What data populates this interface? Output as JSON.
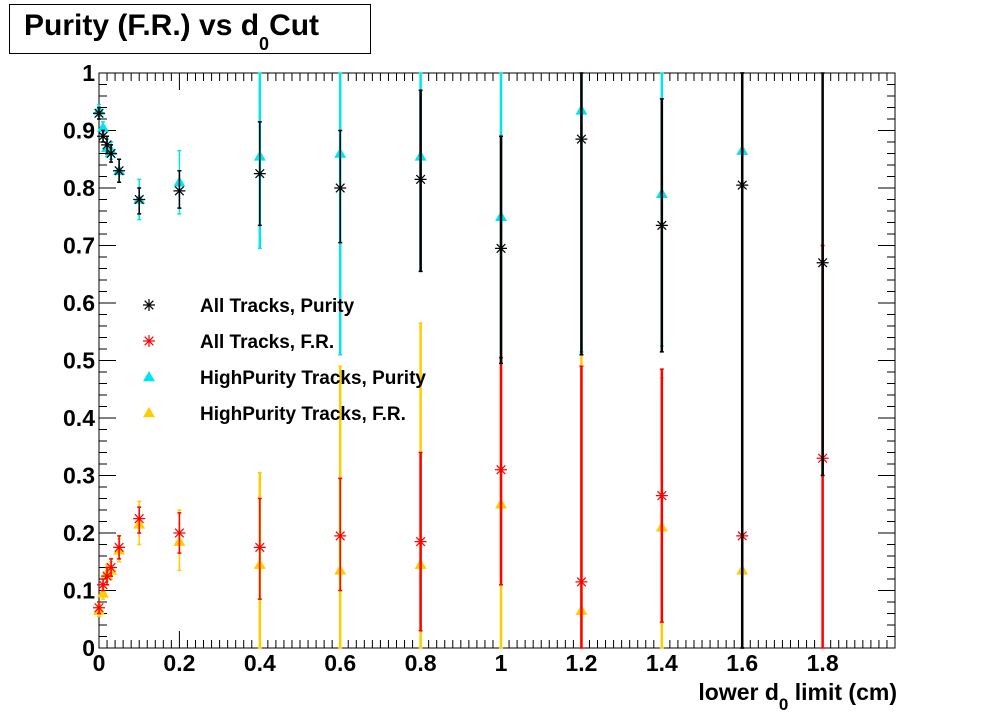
{
  "chart_data": {
    "type": "scatter",
    "title": {
      "main": "Purity (F.R.) vs d",
      "sub": "0",
      "tail": "Cut"
    },
    "xlabel": {
      "pre": "lower d",
      "sub": "0",
      "post": " limit (cm)"
    },
    "ylabel": "",
    "xlim": [
      0,
      1.98
    ],
    "ylim": [
      0,
      1
    ],
    "xticks": [
      0,
      0.2,
      0.4,
      0.6,
      0.8,
      1,
      1.2,
      1.4,
      1.6,
      1.8
    ],
    "xtick_labels": [
      "0",
      "0.2",
      "0.4",
      "0.6",
      "0.8",
      "1",
      "1.2",
      "1.4",
      "1.6",
      "1.8"
    ],
    "yticks": [
      0,
      0.1,
      0.2,
      0.3,
      0.4,
      0.5,
      0.6,
      0.7,
      0.8,
      0.9,
      1
    ],
    "ytick_labels": [
      "0",
      "0.1",
      "0.2",
      "0.3",
      "0.4",
      "0.5",
      "0.6",
      "0.7",
      "0.8",
      "0.9",
      "1"
    ],
    "grid": false,
    "legend_position": "center-left",
    "series": [
      {
        "name": "All Tracks, Purity",
        "color": "#000000",
        "marker": "star",
        "points": [
          {
            "x": 0.0,
            "y": 0.93,
            "lo": 0.92,
            "hi": 0.94
          },
          {
            "x": 0.01,
            "y": 0.89,
            "lo": 0.88,
            "hi": 0.9
          },
          {
            "x": 0.02,
            "y": 0.875,
            "lo": 0.86,
            "hi": 0.89
          },
          {
            "x": 0.03,
            "y": 0.86,
            "lo": 0.845,
            "hi": 0.875
          },
          {
            "x": 0.05,
            "y": 0.83,
            "lo": 0.81,
            "hi": 0.85
          },
          {
            "x": 0.1,
            "y": 0.78,
            "lo": 0.755,
            "hi": 0.8
          },
          {
            "x": 0.2,
            "y": 0.795,
            "lo": 0.765,
            "hi": 0.83
          },
          {
            "x": 0.4,
            "y": 0.825,
            "lo": 0.735,
            "hi": 0.915
          },
          {
            "x": 0.6,
            "y": 0.8,
            "lo": 0.705,
            "hi": 0.9
          },
          {
            "x": 0.8,
            "y": 0.815,
            "lo": 0.655,
            "hi": 0.97
          },
          {
            "x": 1.0,
            "y": 0.695,
            "lo": 0.495,
            "hi": 0.89
          },
          {
            "x": 1.2,
            "y": 0.885,
            "lo": 0.51,
            "hi": 1.0
          },
          {
            "x": 1.4,
            "y": 0.735,
            "lo": 0.515,
            "hi": 0.955
          },
          {
            "x": 1.6,
            "y": 0.805,
            "lo": 0.0,
            "hi": 1.0
          },
          {
            "x": 1.8,
            "y": 0.67,
            "lo": 0.3,
            "hi": 1.0
          }
        ]
      },
      {
        "name": "All Tracks, F.R.",
        "color": "#ff0000",
        "marker": "star",
        "points": [
          {
            "x": 0.0,
            "y": 0.07,
            "lo": 0.06,
            "hi": 0.08
          },
          {
            "x": 0.01,
            "y": 0.11,
            "lo": 0.1,
            "hi": 0.12
          },
          {
            "x": 0.02,
            "y": 0.125,
            "lo": 0.11,
            "hi": 0.14
          },
          {
            "x": 0.03,
            "y": 0.14,
            "lo": 0.125,
            "hi": 0.155
          },
          {
            "x": 0.05,
            "y": 0.175,
            "lo": 0.155,
            "hi": 0.195
          },
          {
            "x": 0.1,
            "y": 0.225,
            "lo": 0.2,
            "hi": 0.245
          },
          {
            "x": 0.2,
            "y": 0.2,
            "lo": 0.165,
            "hi": 0.235
          },
          {
            "x": 0.4,
            "y": 0.175,
            "lo": 0.085,
            "hi": 0.26
          },
          {
            "x": 0.6,
            "y": 0.195,
            "lo": 0.1,
            "hi": 0.295
          },
          {
            "x": 0.8,
            "y": 0.185,
            "lo": 0.03,
            "hi": 0.34
          },
          {
            "x": 1.0,
            "y": 0.31,
            "lo": 0.11,
            "hi": 0.505
          },
          {
            "x": 1.2,
            "y": 0.115,
            "lo": 0.0,
            "hi": 0.49
          },
          {
            "x": 1.4,
            "y": 0.265,
            "lo": 0.045,
            "hi": 0.485
          },
          {
            "x": 1.6,
            "y": 0.195,
            "lo": 0.0,
            "hi": 1.0
          },
          {
            "x": 1.8,
            "y": 0.33,
            "lo": 0.0,
            "hi": 0.7
          }
        ]
      },
      {
        "name": "HighPurity Tracks, Purity",
        "color": "#00e5ee",
        "marker": "triangle",
        "points": [
          {
            "x": 0.0,
            "y": 0.935,
            "lo": 0.925,
            "hi": 0.945
          },
          {
            "x": 0.01,
            "y": 0.905,
            "lo": 0.895,
            "hi": 0.915
          },
          {
            "x": 0.02,
            "y": 0.87,
            "lo": 0.855,
            "hi": 0.885
          },
          {
            "x": 0.03,
            "y": 0.865,
            "lo": 0.85,
            "hi": 0.88
          },
          {
            "x": 0.05,
            "y": 0.83,
            "lo": 0.81,
            "hi": 0.85
          },
          {
            "x": 0.1,
            "y": 0.78,
            "lo": 0.745,
            "hi": 0.815
          },
          {
            "x": 0.2,
            "y": 0.81,
            "lo": 0.755,
            "hi": 0.865
          },
          {
            "x": 0.4,
            "y": 0.855,
            "lo": 0.695,
            "hi": 1.0
          },
          {
            "x": 0.6,
            "y": 0.86,
            "lo": 0.51,
            "hi": 1.0
          },
          {
            "x": 0.8,
            "y": 0.855,
            "lo": 0.655,
            "hi": 1.0
          },
          {
            "x": 1.0,
            "y": 0.75,
            "lo": 0.505,
            "hi": 1.0
          },
          {
            "x": 1.2,
            "y": 0.935,
            "lo": 0.515,
            "hi": 1.0
          },
          {
            "x": 1.4,
            "y": 0.79,
            "lo": 0.525,
            "hi": 1.0
          },
          {
            "x": 1.6,
            "y": 0.865,
            "lo": 0.0,
            "hi": 1.0
          }
        ]
      },
      {
        "name": "HighPurity Tracks, F.R.",
        "color": "#ffcc00",
        "marker": "triangle",
        "points": [
          {
            "x": 0.0,
            "y": 0.065,
            "lo": 0.055,
            "hi": 0.075
          },
          {
            "x": 0.01,
            "y": 0.095,
            "lo": 0.085,
            "hi": 0.105
          },
          {
            "x": 0.02,
            "y": 0.13,
            "lo": 0.115,
            "hi": 0.145
          },
          {
            "x": 0.03,
            "y": 0.135,
            "lo": 0.12,
            "hi": 0.15
          },
          {
            "x": 0.05,
            "y": 0.17,
            "lo": 0.15,
            "hi": 0.19
          },
          {
            "x": 0.1,
            "y": 0.215,
            "lo": 0.18,
            "hi": 0.255
          },
          {
            "x": 0.2,
            "y": 0.185,
            "lo": 0.135,
            "hi": 0.24
          },
          {
            "x": 0.4,
            "y": 0.145,
            "lo": 0.0,
            "hi": 0.305
          },
          {
            "x": 0.6,
            "y": 0.135,
            "lo": 0.0,
            "hi": 0.49
          },
          {
            "x": 0.8,
            "y": 0.145,
            "lo": 0.0,
            "hi": 0.565
          },
          {
            "x": 1.0,
            "y": 0.25,
            "lo": 0.0,
            "hi": 1.0
          },
          {
            "x": 1.2,
            "y": 0.065,
            "lo": 0.0,
            "hi": 1.0
          },
          {
            "x": 1.4,
            "y": 0.21,
            "lo": 0.0,
            "hi": 0.47
          },
          {
            "x": 1.6,
            "y": 0.135,
            "lo": 0.0,
            "hi": 1.0
          }
        ]
      }
    ]
  }
}
